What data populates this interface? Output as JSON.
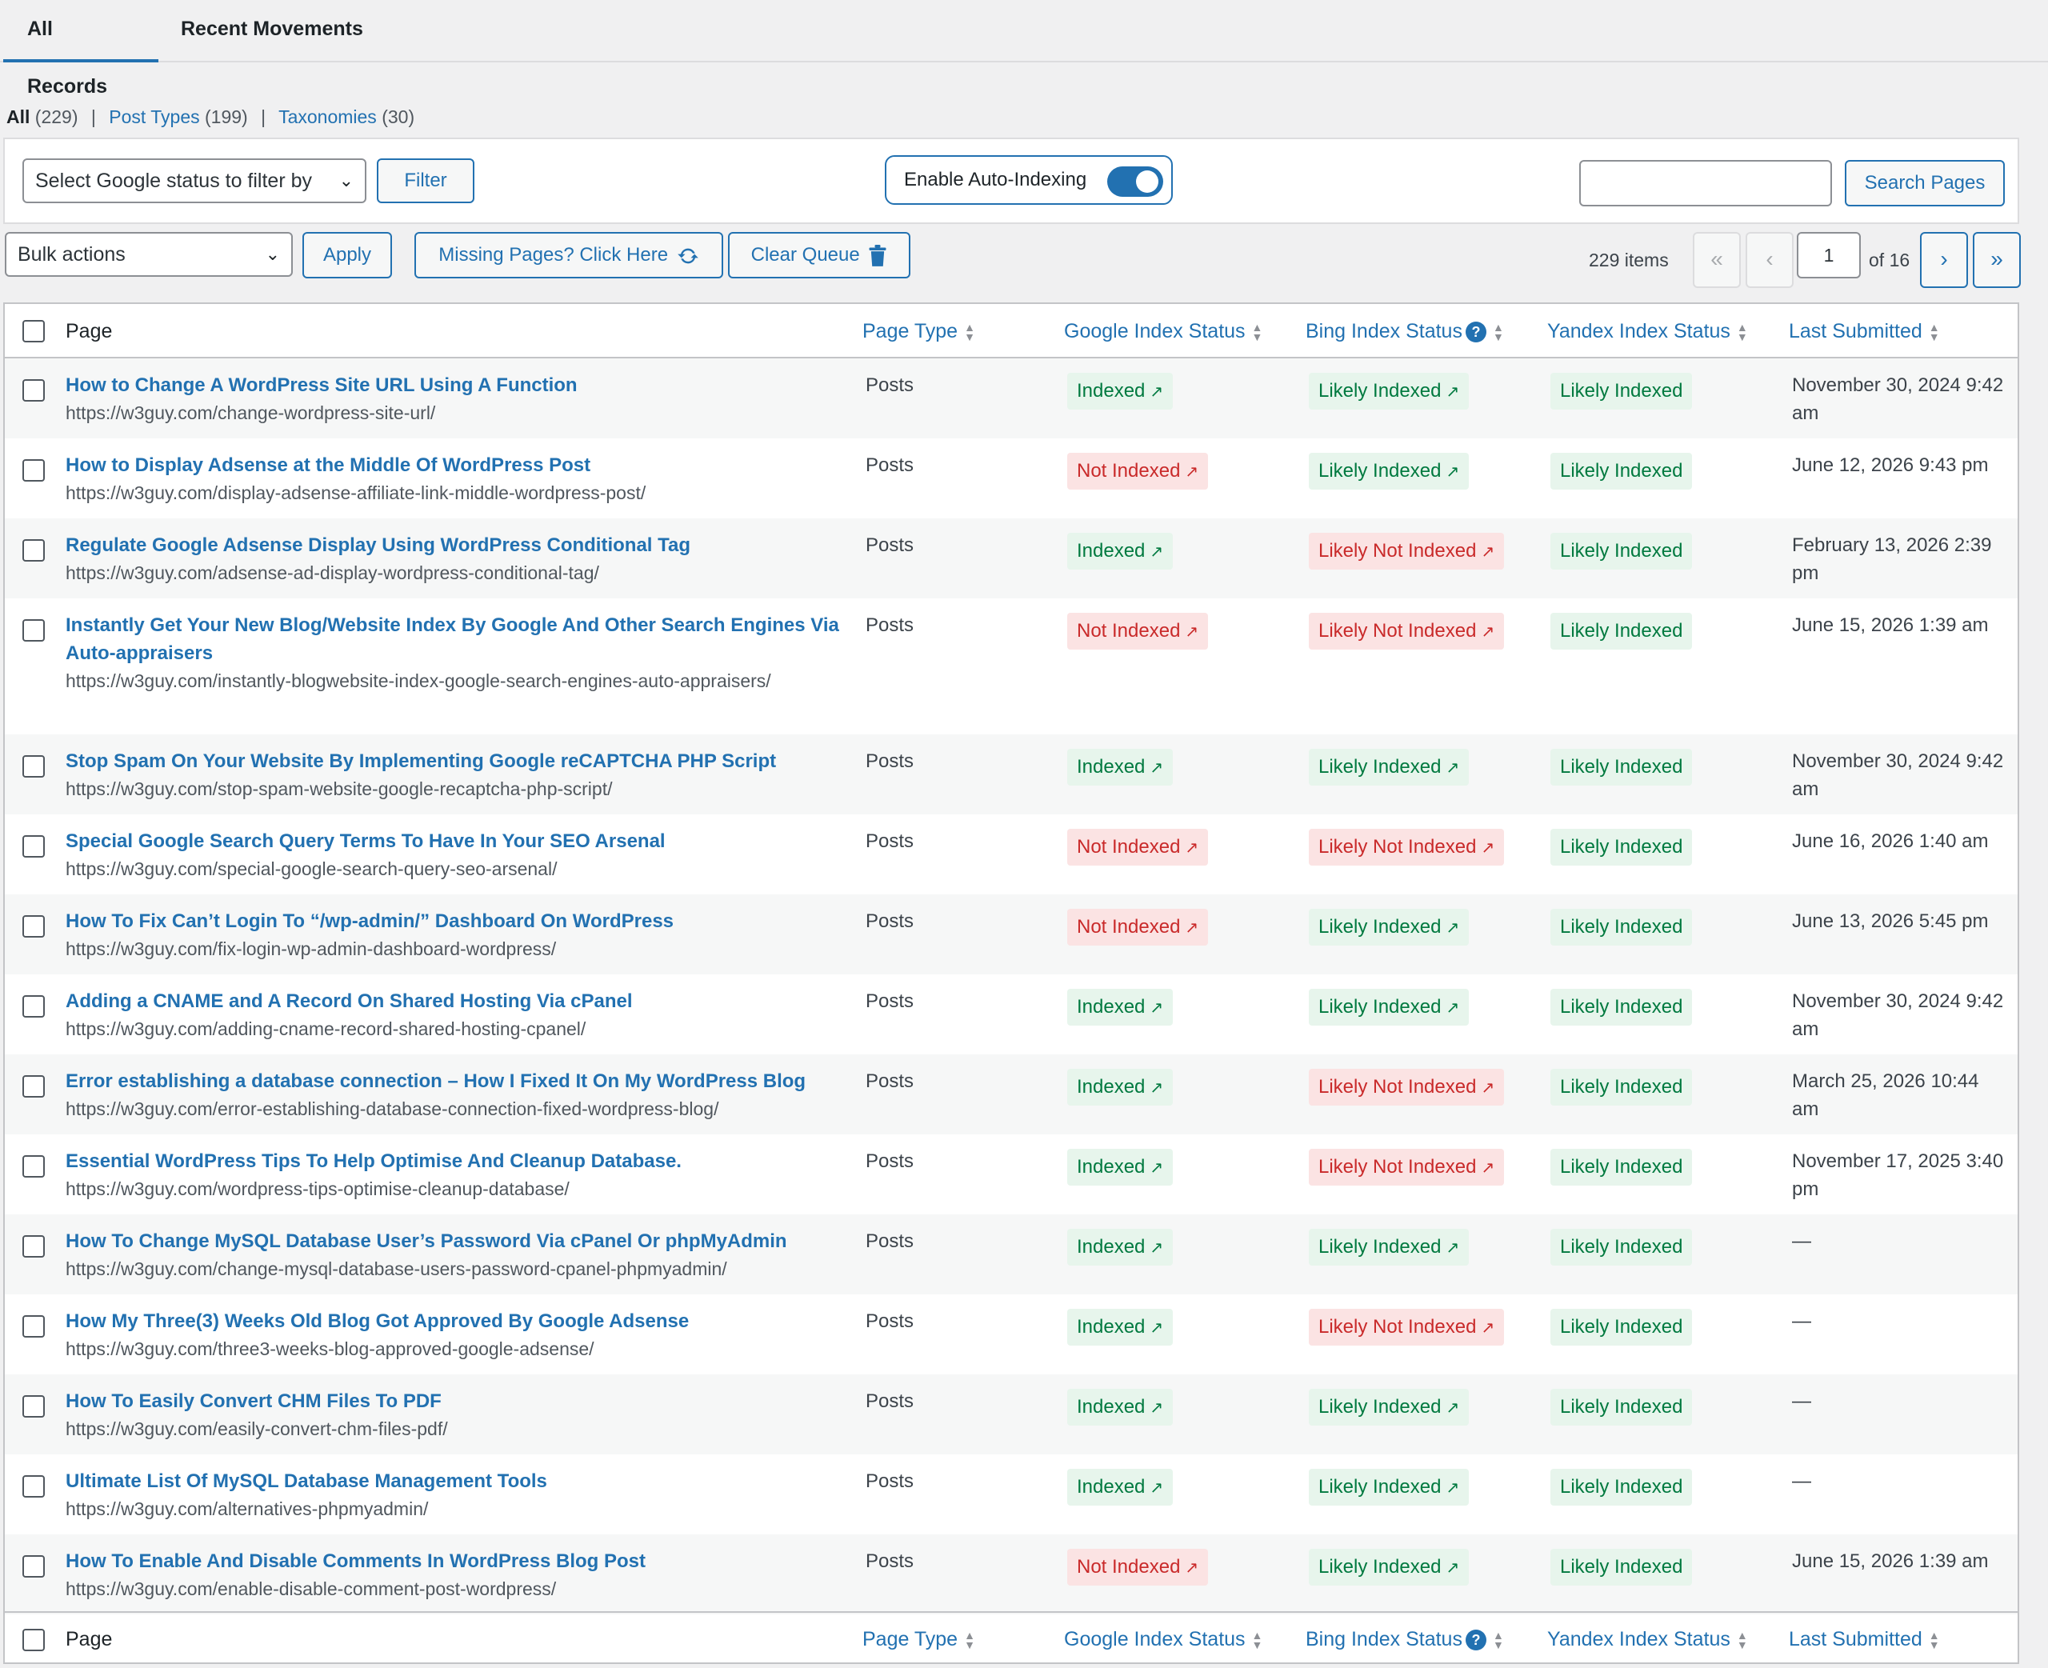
{
  "tabs": {
    "all_records": "All Records",
    "recent_movements": "Recent Movements"
  },
  "filters": {
    "all": "All",
    "all_count": "(229)",
    "post_types": "Post Types",
    "post_types_count": "(199)",
    "taxonomies": "Taxonomies",
    "taxonomies_count": "(30)",
    "sep": "|"
  },
  "filterbar": {
    "google_select": "Select Google status to filter by",
    "filter_button": "Filter",
    "auto_indexing_label": "Enable Auto-Indexing",
    "auto_indexing_enabled": true,
    "search_value": "",
    "search_button": "Search Pages"
  },
  "bulk": {
    "bulk_select": "Bulk actions",
    "apply": "Apply",
    "missing_pages": "Missing Pages? Click Here",
    "clear_queue": "Clear Queue"
  },
  "pagination": {
    "items": "229 items",
    "first": "«",
    "prev": "‹",
    "next": "›",
    "last": "»",
    "current": "1",
    "of": "of 16"
  },
  "columns": {
    "page": "Page",
    "page_type": "Page Type",
    "google": "Google Index Status",
    "bing": "Bing Index Status",
    "yandex": "Yandex Index Status",
    "last_submitted": "Last Submitted"
  },
  "rows": [
    {
      "title": "How to Change A WordPress Site URL Using A Function",
      "url": "https://w3guy.com/change-wordpress-site-url/",
      "type": "Posts",
      "google": "Indexed",
      "bing": "Likely Indexed",
      "yandex": "Likely Indexed",
      "last": "November 30, 2024 9:42 am"
    },
    {
      "title": "How to Display Adsense at the Middle Of WordPress Post",
      "url": "https://w3guy.com/display-adsense-affiliate-link-middle-wordpress-post/",
      "type": "Posts",
      "google": "Not Indexed",
      "bing": "Likely Indexed",
      "yandex": "Likely Indexed",
      "last": "June 12, 2026 9:43 pm"
    },
    {
      "title": "Regulate Google Adsense Display Using WordPress Conditional Tag",
      "url": "https://w3guy.com/adsense-ad-display-wordpress-conditional-tag/",
      "type": "Posts",
      "google": "Indexed",
      "bing": "Likely Not Indexed",
      "yandex": "Likely Indexed",
      "last": "February 13, 2026 2:39 pm"
    },
    {
      "title": "Instantly Get Your New Blog/Website Index By Google And Other Search Engines Via Auto-appraisers",
      "url": "https://w3guy.com/instantly-blogwebsite-index-google-search-engines-auto-appraisers/",
      "type": "Posts",
      "google": "Not Indexed",
      "bing": "Likely Not Indexed",
      "yandex": "Likely Indexed",
      "last": "June 15, 2026 1:39 am"
    },
    {
      "title": "Stop Spam On Your Website By Implementing Google reCAPTCHA PHP Script",
      "url": "https://w3guy.com/stop-spam-website-google-recaptcha-php-script/",
      "type": "Posts",
      "google": "Indexed",
      "bing": "Likely Indexed",
      "yandex": "Likely Indexed",
      "last": "November 30, 2024 9:42 am"
    },
    {
      "title": "Special Google Search Query Terms To Have In Your SEO Arsenal",
      "url": "https://w3guy.com/special-google-search-query-seo-arsenal/",
      "type": "Posts",
      "google": "Not Indexed",
      "bing": "Likely Not Indexed",
      "yandex": "Likely Indexed",
      "last": "June 16, 2026 1:40 am"
    },
    {
      "title": "How To Fix Can’t Login To “/wp-admin/” Dashboard On WordPress",
      "url": "https://w3guy.com/fix-login-wp-admin-dashboard-wordpress/",
      "type": "Posts",
      "google": "Not Indexed",
      "bing": "Likely Indexed",
      "yandex": "Likely Indexed",
      "last": "June 13, 2026 5:45 pm"
    },
    {
      "title": "Adding a CNAME and A Record On Shared Hosting Via cPanel",
      "url": "https://w3guy.com/adding-cname-record-shared-hosting-cpanel/",
      "type": "Posts",
      "google": "Indexed",
      "bing": "Likely Indexed",
      "yandex": "Likely Indexed",
      "last": "November 30, 2024 9:42 am"
    },
    {
      "title": "Error establishing a database connection – How I Fixed It On My WordPress Blog",
      "url": "https://w3guy.com/error-establishing-database-connection-fixed-wordpress-blog/",
      "type": "Posts",
      "google": "Indexed",
      "bing": "Likely Not Indexed",
      "yandex": "Likely Indexed",
      "last": "March 25, 2026 10:44 am"
    },
    {
      "title": "Essential WordPress Tips To Help Optimise And Cleanup Database.",
      "url": "https://w3guy.com/wordpress-tips-optimise-cleanup-database/",
      "type": "Posts",
      "google": "Indexed",
      "bing": "Likely Not Indexed",
      "yandex": "Likely Indexed",
      "last": "November 17, 2025 3:40 pm"
    },
    {
      "title": "How To Change MySQL Database User’s Password Via cPanel Or phpMyAdmin",
      "url": "https://w3guy.com/change-mysql-database-users-password-cpanel-phpmyadmin/",
      "type": "Posts",
      "google": "Indexed",
      "bing": "Likely Indexed",
      "yandex": "Likely Indexed",
      "last": "—"
    },
    {
      "title": "How My Three(3) Weeks Old Blog Got Approved By Google Adsense",
      "url": "https://w3guy.com/three3-weeks-blog-approved-google-adsense/",
      "type": "Posts",
      "google": "Indexed",
      "bing": "Likely Not Indexed",
      "yandex": "Likely Indexed",
      "last": "—"
    },
    {
      "title": "How To Easily Convert CHM Files To PDF",
      "url": "https://w3guy.com/easily-convert-chm-files-pdf/",
      "type": "Posts",
      "google": "Indexed",
      "bing": "Likely Indexed",
      "yandex": "Likely Indexed",
      "last": "—"
    },
    {
      "title": "Ultimate List Of MySQL Database Management Tools",
      "url": "https://w3guy.com/alternatives-phpmyadmin/",
      "type": "Posts",
      "google": "Indexed",
      "bing": "Likely Indexed",
      "yandex": "Likely Indexed",
      "last": "—"
    },
    {
      "title": "How To Enable And Disable Comments In WordPress Blog Post",
      "url": "https://w3guy.com/enable-disable-comment-post-wordpress/",
      "type": "Posts",
      "google": "Not Indexed",
      "bing": "Likely Indexed",
      "yandex": "Likely Indexed",
      "last": "June 15, 2026 1:39 am"
    }
  ]
}
